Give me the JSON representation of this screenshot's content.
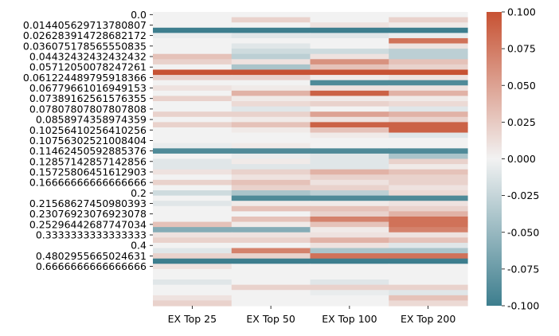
{
  "chart_data": {
    "type": "heatmap",
    "title": "",
    "xlabel": "",
    "ylabel": "",
    "columns": [
      "EX Top 25",
      "EX Top 50",
      "EX Top 100",
      "EX Top 200"
    ],
    "row_labels": [
      "0.0",
      "",
      "0.014405629713780807",
      "",
      "0.026283914728682172",
      "",
      "0.036075178565550835",
      "",
      "0.04432432432432432",
      "",
      "0.05712050078247261",
      "",
      "0.061224489795918366",
      "",
      "0.06779661016949153",
      "",
      "0.07389162561576355",
      "",
      "0.07807807807807808",
      "",
      "0.0858974358974359",
      "",
      "0.10256410256410256",
      "",
      "0.10756302521008404",
      "",
      "0.11462450592885376",
      "",
      "0.12857142857142856",
      "",
      "0.15725806451612903",
      "",
      "0.16666666666666666",
      "",
      "0.2",
      "",
      "0.21568627450980393",
      "",
      "0.23076923076923078",
      "",
      "0.25296442687747034",
      "",
      "0.3333333333333333",
      "",
      "0.4",
      "",
      "0.4802955665024631",
      "",
      "0.6666666666666666",
      ""
    ],
    "values": [
      [
        0,
        0,
        0,
        0
      ],
      [
        0,
        0.02,
        0,
        0.02
      ],
      [
        0,
        0,
        0.01,
        0.005
      ],
      [
        -0.1,
        -0.1,
        -0.1,
        -0.1
      ],
      [
        -0.005,
        -0.01,
        -0.01,
        -0.005
      ],
      [
        0,
        0,
        0,
        0.08
      ],
      [
        0,
        -0.01,
        0,
        0.01
      ],
      [
        0,
        -0.02,
        -0.02,
        -0.03
      ],
      [
        0.03,
        -0.03,
        0.01,
        -0.03
      ],
      [
        0.02,
        0.01,
        0.06,
        0.03
      ],
      [
        0,
        -0.04,
        0.03,
        0.02
      ],
      [
        0.1,
        0.1,
        0.1,
        0.1
      ],
      [
        0.02,
        0.02,
        0.005,
        0.01
      ],
      [
        0,
        0,
        -0.09,
        -0.09
      ],
      [
        0.01,
        0.005,
        0.01,
        0.01
      ],
      [
        0,
        0.04,
        0.09,
        0.04
      ],
      [
        0.02,
        0.005,
        0.005,
        0.005
      ],
      [
        0,
        0.015,
        0.02,
        0.015
      ],
      [
        0,
        -0.01,
        0,
        -0.01
      ],
      [
        0.02,
        0.02,
        0.05,
        0.04
      ],
      [
        0,
        0.005,
        0.01,
        0.02
      ],
      [
        0.02,
        0.03,
        0.09,
        0.09
      ],
      [
        0,
        0.005,
        0.03,
        0.09
      ],
      [
        0,
        0,
        0.005,
        -0.01
      ],
      [
        0,
        0,
        0,
        0
      ],
      [
        -0.005,
        0.005,
        0,
        0
      ],
      [
        -0.09,
        -0.09,
        -0.09,
        -0.09
      ],
      [
        0,
        -0.005,
        -0.01,
        -0.04
      ],
      [
        -0.01,
        0.005,
        -0.01,
        0.02
      ],
      [
        -0.01,
        -0.01,
        -0.01,
        0.005
      ],
      [
        0.01,
        0.02,
        0.04,
        0.03
      ],
      [
        0,
        0.01,
        0.02,
        0.02
      ],
      [
        0.02,
        0.03,
        0.01,
        0.02
      ],
      [
        0,
        0.02,
        0.02,
        0.01
      ],
      [
        -0.02,
        -0.04,
        -0.03,
        0.015
      ],
      [
        0,
        -0.09,
        -0.09,
        -0.09
      ],
      [
        -0.01,
        0.005,
        0.005,
        0.01
      ],
      [
        0,
        0.03,
        0.03,
        0.02
      ],
      [
        0,
        0,
        0.02,
        0.04
      ],
      [
        0,
        0.03,
        0.07,
        0.08
      ],
      [
        0.03,
        0.005,
        0.03,
        0.08
      ],
      [
        -0.06,
        -0.06,
        0.005,
        0.07
      ],
      [
        0.01,
        0.01,
        0.01,
        0.01
      ],
      [
        0.02,
        0.02,
        0.04,
        0.03
      ],
      [
        0,
        0,
        0.01,
        -0.01
      ],
      [
        -0.01,
        0.07,
        -0.04,
        -0.04
      ],
      [
        0.02,
        0.02,
        0.08,
        0.08
      ],
      [
        -0.1,
        -0.1,
        -0.1,
        -0.1
      ],
      [
        0.01,
        0,
        0,
        0
      ],
      [
        0,
        0,
        0,
        0
      ],
      [
        0,
        0,
        0,
        0
      ],
      [
        -0.01,
        0,
        -0.01,
        0
      ],
      [
        0,
        0.02,
        0.02,
        0.02
      ],
      [
        0,
        0,
        -0.005,
        -0.01
      ],
      [
        0.01,
        0,
        0,
        0.03
      ],
      [
        0.02,
        0,
        0,
        0.015
      ]
    ],
    "colorbar": {
      "vmin": -0.1,
      "vmax": 0.1,
      "ticks": [
        "-0.100",
        "-0.075",
        "-0.050",
        "-0.025",
        "0.000",
        "0.025",
        "0.050",
        "0.075",
        "0.100"
      ],
      "colors": {
        "negative": "#3d7e8e",
        "neutral": "#f2f2f2",
        "positive": "#c75233"
      }
    }
  }
}
